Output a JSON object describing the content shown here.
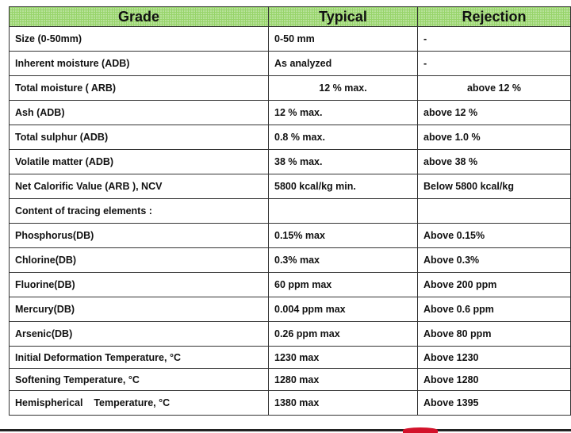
{
  "headers": [
    "Grade",
    "Typical",
    "Rejection"
  ],
  "rows": [
    {
      "grade": "Size (0-50mm)",
      "typical": "0-50 mm",
      "rejection": "-"
    },
    {
      "grade": "Inherent moisture (ADB)",
      "typical": "As analyzed",
      "rejection": "-"
    },
    {
      "grade": "Total moisture ( ARB)",
      "typical": "12 % max.",
      "rejection": "above 12 %"
    },
    {
      "grade": "Ash (ADB)",
      "typical": "12 % max.",
      "rejection": "above 12 %"
    },
    {
      "grade": "Total sulphur (ADB)",
      "typical": "0.8 % max.",
      "rejection": "above 1.0 %"
    },
    {
      "grade": "Volatile matter (ADB)",
      "typical": "38 % max.",
      "rejection": "above 38 %"
    },
    {
      "grade": "Net Calorific Value (ARB ), NCV",
      "typical": "5800 kcal/kg min.",
      "rejection": "Below 5800 kcal/kg"
    },
    {
      "grade": "Content of tracing elements :",
      "typical": "",
      "rejection": ""
    },
    {
      "grade": "Phosphorus(DB)",
      "typical": "0.15% max",
      "rejection": "Above 0.15%"
    },
    {
      "grade": "Chlorine(DB)",
      "typical": "0.3% max",
      "rejection": "Above 0.3%"
    },
    {
      "grade": "Fluorine(DB)",
      "typical": "60 ppm max",
      "rejection": "Above 200 ppm"
    },
    {
      "grade": "Mercury(DB)",
      "typical": "0.004 ppm max",
      "rejection": "Above 0.6 ppm"
    },
    {
      "grade": "Arsenic(DB)",
      "typical": "0.26 ppm max",
      "rejection": "Above 80 ppm"
    },
    {
      "grade": "Initial Deformation Temperature, °C",
      "typical": "1230 max",
      "rejection": "Above 1230"
    },
    {
      "grade": "Softening Temperature, °C",
      "typical": "1280 max",
      "rejection": "Above 1280"
    },
    {
      "grade": "Hemispherical    Temperature, °C",
      "typical": "1380 max",
      "rejection": "Above 1395"
    }
  ]
}
